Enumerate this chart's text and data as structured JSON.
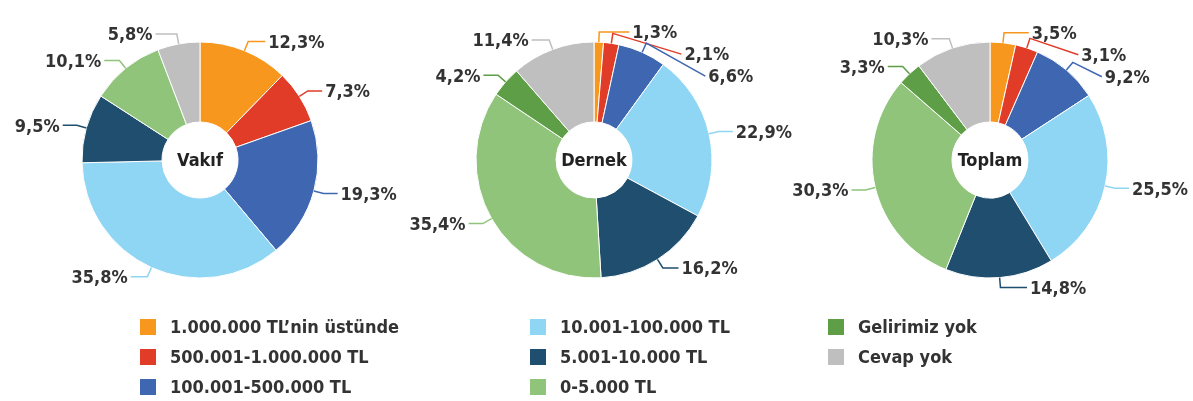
{
  "chart_data": [
    {
      "type": "donut",
      "title": "Vakıf",
      "categories": [
        "1.000.000 TL’nin üstünde",
        "500.001-1.000.000 TL",
        "100.001-500.000 TL",
        "10.001-100.000 TL",
        "5.001-10.000 TL",
        "0-5.000 TL",
        "Gelirimiz yok",
        "Cevap yok"
      ],
      "values": [
        12.3,
        7.3,
        19.3,
        35.8,
        9.5,
        10.1,
        null,
        5.8
      ],
      "value_labels": [
        "12,3%",
        "7,3%",
        "19,3%",
        "35,8%",
        "9,5%",
        "10,1%",
        null,
        "5,8%"
      ],
      "colors": [
        "#f7971d",
        "#e03c28",
        "#3f67b1",
        "#8fd6f4",
        "#1f4e6e",
        "#8fc47a",
        "#5e9e46",
        "#bfbfbf"
      ],
      "legend": "bottom"
    },
    {
      "type": "donut",
      "title": "Dernek",
      "categories": [
        null,
        null,
        null,
        null,
        null,
        null,
        null,
        null
      ],
      "values": [
        1.3,
        2.1,
        6.6,
        22.9,
        16.2,
        35.4,
        4.2,
        11.4
      ],
      "value_labels": [
        "1,3%",
        "2,1%",
        "6,6%",
        "22,9%",
        "16,2%",
        "35,4%",
        "4,2%",
        "11,4%"
      ],
      "colors": [
        "#f7971d",
        "#e03c28",
        "#3f67b1",
        "#8fd6f4",
        "#1f4e6e",
        "#8fc47a",
        "#5e9e46",
        "#bfbfbf"
      ]
    },
    {
      "type": "donut",
      "title": "Toplam",
      "categories": [
        null,
        null,
        null,
        null,
        null,
        null,
        null,
        null
      ],
      "values": [
        3.5,
        3.1,
        9.2,
        25.5,
        14.8,
        30.3,
        3.3,
        10.3
      ],
      "value_labels": [
        "3,5%",
        "3,1%",
        "9,2%",
        "25,5%",
        "14,8%",
        "30,3%",
        "3,3%",
        "10,3%"
      ],
      "colors": [
        "#f7971d",
        "#e03c28",
        "#3f67b1",
        "#8fd6f4",
        "#1f4e6e",
        "#8fc47a",
        "#5e9e46",
        "#bfbfbf"
      ]
    }
  ]
}
